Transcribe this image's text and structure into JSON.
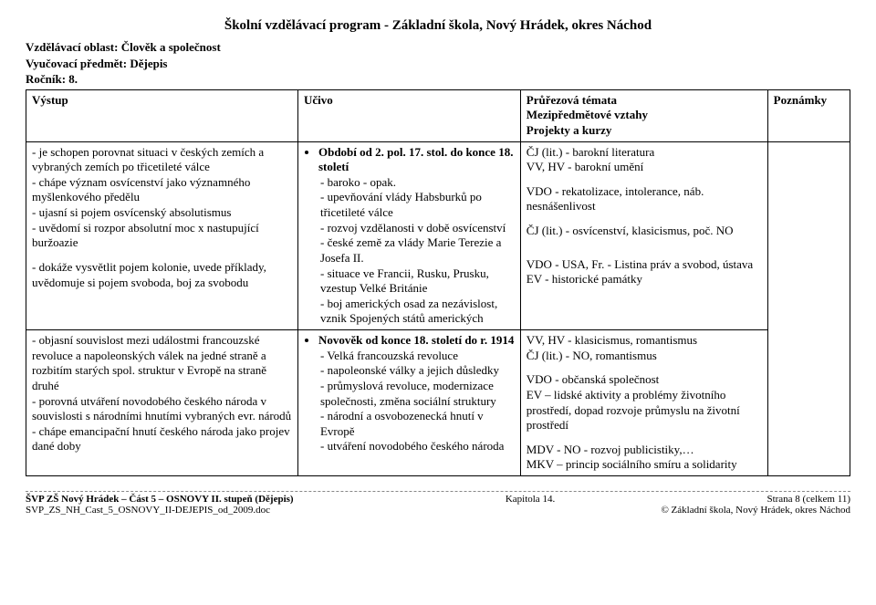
{
  "doc_title": "Školní vzdělávací program  -  Základní škola, Nový Hrádek, okres Náchod",
  "header": {
    "oblast_label": "Vzdělávací oblast: Člověk a společnost",
    "predmet_label": "Vyučovací předmět: Dějepis",
    "rocnik_label": "Ročník: 8."
  },
  "table_head": {
    "vystup": "Výstup",
    "ucivo": "Učivo",
    "prurez1": "Průřezová témata",
    "prurez2": "Mezipředmětové vztahy",
    "prurez3": "Projekty a kurzy",
    "poznamky": "Poznámky"
  },
  "row1": {
    "vystup": {
      "p1": "- je schopen porovnat situaci v českých zemích a vybraných zemích po třicetileté válce",
      "p2": "- chápe význam osvícenství jako významného myšlenkového předělu",
      "p3": "- ujasní si pojem osvícenský absolutismus",
      "p4": "- uvědomí si rozpor absolutní moc x nastupující buržoazie",
      "p5": "- dokáže vysvětlit pojem kolonie, uvede příklady, uvědomuje si pojem svoboda, boj za svobodu"
    },
    "ucivo": {
      "bullet": "Období od 2. pol. 17. stol. do konce 18. století",
      "l1": "- baroko - opak.",
      "l2": "- upevňování vlády Habsburků po třicetileté válce",
      "l3": "- rozvoj vzdělanosti v době osvícenství",
      "l4": "- české země za vlády Marie Terezie a Josefa II.",
      "l5": "- situace ve Francii, Rusku, Prusku, vzestup Velké Británie",
      "l6": "- boj amerických osad za nezávislost, vznik Spojených států amerických"
    },
    "prurez": {
      "l1": "ČJ (lit.) - barokní literatura",
      "l2": "VV, HV - barokní umění",
      "l3": "VDO - rekatolizace, intolerance, náb. nesnášenlivost",
      "l4": "ČJ (lit.) - osvícenství, klasicismus, poč. NO",
      "l5": "VDO - USA, Fr. - Listina práv a svobod, ústava",
      "l6": "EV - historické památky"
    }
  },
  "row2": {
    "vystup": {
      "p1": "- objasní souvislost mezi událostmi francouzské revoluce a napoleonských válek na jedné straně a rozbitím starých spol. struktur v Evropě na straně druhé",
      "p2": "- porovná utváření novodobého českého národa v souvislosti s národními hnutími vybraných evr. národů",
      "p3": "- chápe emancipační hnutí českého národa jako projev dané doby"
    },
    "ucivo": {
      "bullet": "Novověk od konce 18. století do r. 1914",
      "l1": "- Velká francouzská revoluce",
      "l2": "- napoleonské války a jejich důsledky",
      "l3": "- průmyslová revoluce, modernizace společnosti, změna sociální struktury",
      "l4": "- národní a osvobozenecká hnutí v Evropě",
      "l5": "- utváření novodobého českého národa"
    },
    "prurez": {
      "l1": "VV, HV - klasicismus, romantismus",
      "l2": "ČJ (lit.) - NO, romantismus",
      "l3": "VDO - občanská společnost",
      "l4": "EV – lidské aktivity a problémy životního prostředí, dopad rozvoje průmyslu na životní prostředí",
      "l5": "MDV - NO - rozvoj publicistiky,…",
      "l6": "MKV – princip sociálního smíru a solidarity"
    }
  },
  "footer": {
    "left1": "ŠVP ZŠ Nový Hrádek – Část 5 – OSNOVY II. stupeň (Dějepis)",
    "left2": "SVP_ZS_NH_Cast_5_OSNOVY_II-DEJEPIS_od_2009.doc",
    "center": "Kapitola 14.",
    "right1": "Strana 8 (celkem 11)",
    "right2": "© Základní škola, Nový Hrádek, okres Náchod"
  }
}
